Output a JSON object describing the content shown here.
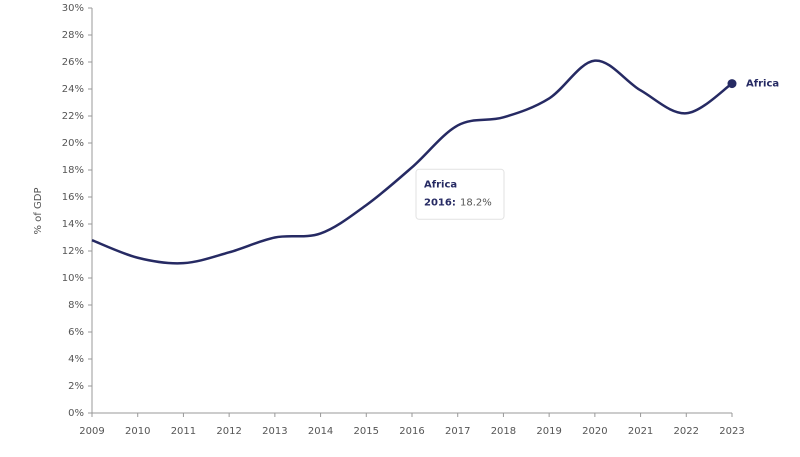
{
  "chart_data": {
    "type": "line",
    "y_label": "% of GDP",
    "categories": [
      "2009",
      "2010",
      "2011",
      "2012",
      "2013",
      "2014",
      "2015",
      "2016",
      "2017",
      "2018",
      "2019",
      "2020",
      "2021",
      "2022",
      "2023"
    ],
    "series": [
      {
        "name": "Africa",
        "color": "#262a63",
        "values": [
          12.8,
          11.5,
          11.1,
          11.9,
          13.0,
          13.3,
          15.4,
          18.2,
          21.3,
          21.9,
          23.3,
          26.1,
          23.9,
          22.2,
          24.4
        ]
      }
    ],
    "ylim": [
      0,
      30
    ],
    "yticks": [
      {
        "value": 0,
        "label": "0%"
      },
      {
        "value": 2,
        "label": "2%"
      },
      {
        "value": 4,
        "label": "4%"
      },
      {
        "value": 6,
        "label": "6%"
      },
      {
        "value": 8,
        "label": "8%"
      },
      {
        "value": 10,
        "label": "10%"
      },
      {
        "value": 12,
        "label": "12%"
      },
      {
        "value": 14,
        "label": "14%"
      },
      {
        "value": 16,
        "label": "16%"
      },
      {
        "value": 18,
        "label": "18%"
      },
      {
        "value": 20,
        "label": "20%"
      },
      {
        "value": 22,
        "label": "22%"
      },
      {
        "value": 24,
        "label": "24%"
      },
      {
        "value": 26,
        "label": "26%"
      },
      {
        "value": 28,
        "label": "28%"
      },
      {
        "value": 30,
        "label": "30%"
      }
    ],
    "grid": false,
    "tooltip": {
      "label": "2016:",
      "value_label": "18.2%"
    }
  }
}
